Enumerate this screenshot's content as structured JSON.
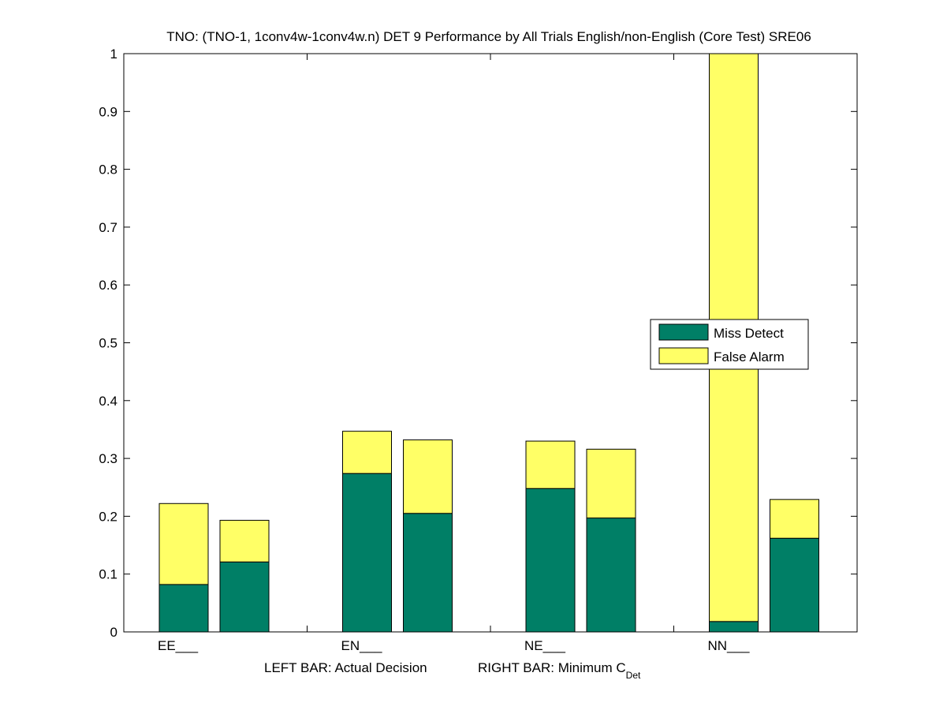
{
  "chart_data": {
    "type": "bar",
    "stacked": true,
    "title": "TNO: (TNO-1, 1conv4w-1conv4w.n) DET 9 Performance by All Trials English/non-English (Core Test) SRE06",
    "xlabel_left": "LEFT BAR: Actual Decision",
    "xlabel_right_main": "RIGHT BAR: Minimum C",
    "xlabel_right_sub": "Det",
    "categories": [
      "EE___",
      "EN___",
      "NE___",
      "NN___"
    ],
    "bars_per_category": [
      "Actual Decision",
      "Minimum CDet"
    ],
    "series": [
      {
        "name": "Miss Detect",
        "color": "#007f66",
        "values": [
          [
            0.082,
            0.121
          ],
          [
            0.274,
            0.205
          ],
          [
            0.248,
            0.197
          ],
          [
            0.018,
            0.162
          ]
        ]
      },
      {
        "name": "False Alarm",
        "color": "#ffff66",
        "values": [
          [
            0.14,
            0.072
          ],
          [
            0.073,
            0.127
          ],
          [
            0.082,
            0.119
          ],
          [
            0.982,
            0.067
          ]
        ]
      }
    ],
    "ylim": [
      0,
      1
    ],
    "yticks": [
      "0",
      "0.1",
      "0.2",
      "0.3",
      "0.4",
      "0.5",
      "0.6",
      "0.7",
      "0.8",
      "0.9",
      "1"
    ],
    "legend_position": "center-right",
    "grid": false
  }
}
